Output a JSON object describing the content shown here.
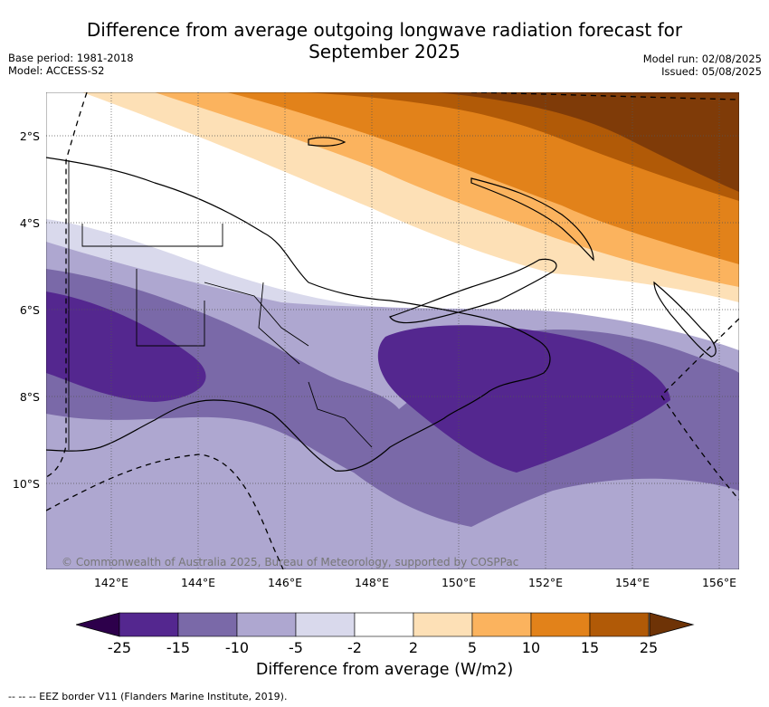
{
  "title": {
    "line1": "Difference from average outgoing longwave radiation forecast for",
    "line2": "September 2025"
  },
  "meta": {
    "base_period": "Base period: 1981-2018",
    "model": "Model: ACCESS-S2",
    "model_run": "Model run: 02/08/2025",
    "issued": "Issued: 05/08/2025"
  },
  "map": {
    "latitude_labels": [
      "2°S",
      "4°S",
      "6°S",
      "8°S",
      "10°S"
    ],
    "longitude_labels": [
      "142°E",
      "144°E",
      "146°E",
      "148°E",
      "150°E",
      "152°E",
      "154°E",
      "156°E"
    ],
    "lon_range": [
      140.5,
      156.5
    ],
    "lat_range": [
      -12,
      -1
    ],
    "copyright": "© Commonwealth of Australia 2025, Bureau of Meteorology, supported by COSPPac"
  },
  "colorbar": {
    "title": "Difference from average (W/m2)",
    "ticks": [
      "-25",
      "-15",
      "-10",
      "-5",
      "-2",
      "2",
      "5",
      "10",
      "15",
      "25"
    ],
    "colors": [
      "#54278f",
      "#7a69a8",
      "#aea7d0",
      "#d9d9ec",
      "#ffffff",
      "#fde0b6",
      "#fbb35e",
      "#e2821a",
      "#b15a07",
      "#7f3b08"
    ],
    "under_color": "#2d004b",
    "over_color": "#6e3306"
  },
  "legend": {
    "eez_label": "--  --  -- EEZ border V11 (Flanders Marine Institute, 2019)."
  }
}
